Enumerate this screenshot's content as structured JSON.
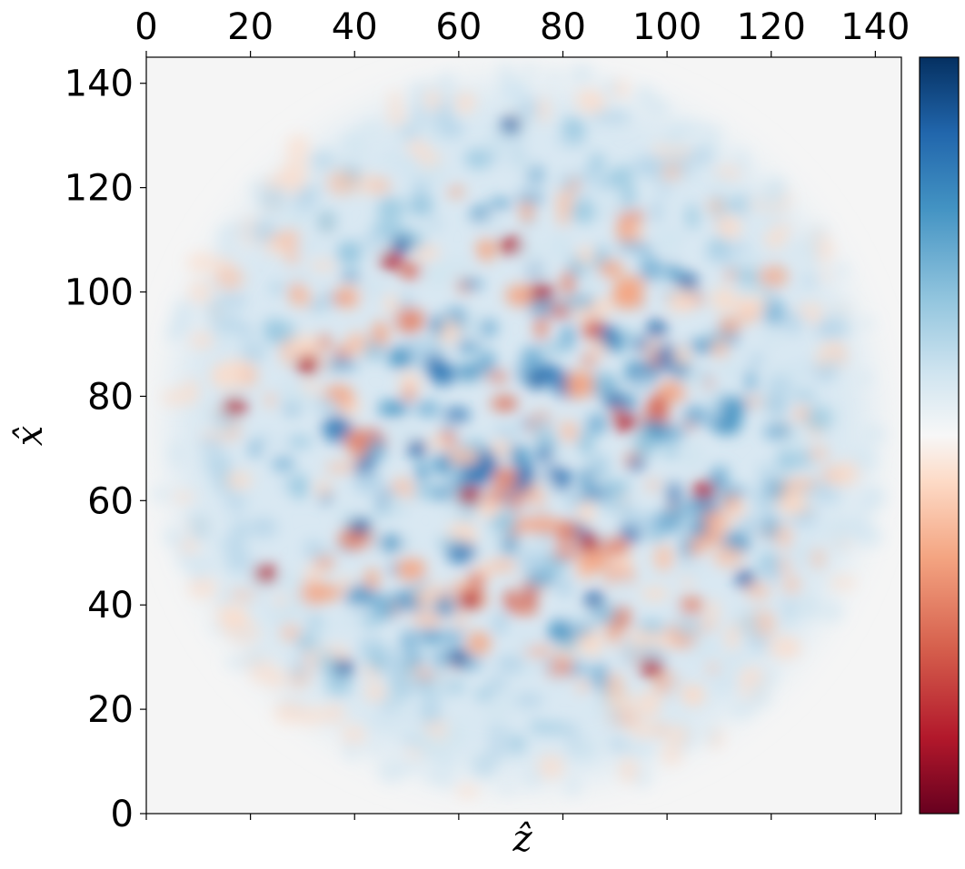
{
  "chart_data": {
    "type": "heatmap",
    "title": "",
    "xlabel": "ẑ",
    "ylabel": "x̂",
    "x_ticks": [
      "0",
      "20",
      "40",
      "60",
      "80",
      "100",
      "120",
      "140"
    ],
    "y_ticks": [
      "0",
      "20",
      "40",
      "60",
      "80",
      "100",
      "120",
      "140"
    ],
    "xlim": [
      0,
      145
    ],
    "ylim": [
      0,
      145
    ],
    "x_tick_values": [
      0,
      20,
      40,
      60,
      80,
      100,
      120,
      140
    ],
    "y_tick_values": [
      0,
      20,
      40,
      60,
      80,
      100,
      120,
      140
    ],
    "x_axis_position": "top",
    "colormap": "RdBu",
    "colorbar": {
      "position": "right",
      "tick_labels": []
    },
    "grid": false,
    "background_color": "#f5f5f5",
    "field": {
      "shape": "disk",
      "center": [
        72,
        73
      ],
      "radius": 70,
      "description_values": "mixed positive (blue) and negative (red) fluctuation field"
    },
    "strong_negative_spots": [
      [
        70,
        109
      ],
      [
        62,
        41
      ],
      [
        23,
        46
      ],
      [
        17,
        78
      ],
      [
        92,
        75
      ],
      [
        47,
        106
      ],
      [
        97,
        28
      ],
      [
        85,
        52
      ],
      [
        62,
        61
      ],
      [
        31,
        86
      ],
      [
        107,
        62
      ],
      [
        76,
        100
      ]
    ],
    "strong_positive_spots": [
      [
        49,
        109
      ],
      [
        75,
        83
      ],
      [
        70,
        132
      ],
      [
        98,
        93
      ],
      [
        60,
        30
      ],
      [
        115,
        45
      ],
      [
        41,
        55
      ],
      [
        86,
        41
      ],
      [
        52,
        70
      ],
      [
        104,
        102
      ],
      [
        38,
        28
      ],
      [
        90,
        79
      ]
    ]
  }
}
